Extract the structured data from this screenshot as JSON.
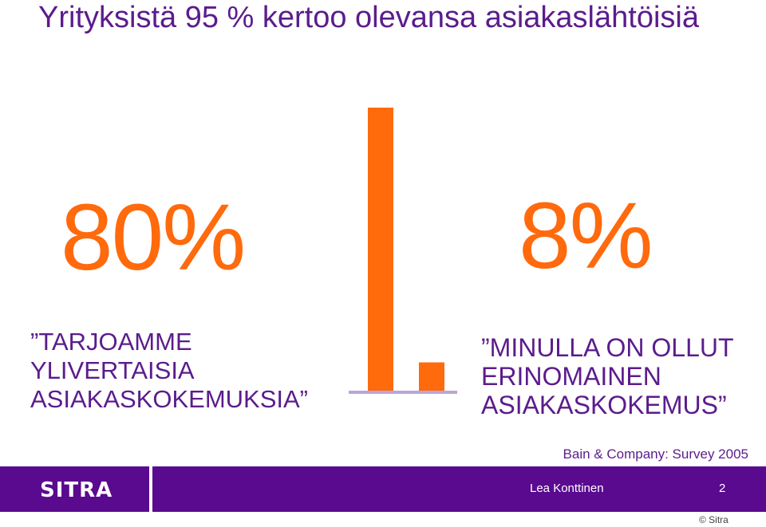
{
  "slide": {
    "title": "Yrityksistä 95 % kertoo olevansa asiakaslähtöisiä",
    "left_value_label": "80%",
    "left_quote_lines": [
      "”TARJOAMME",
      "YLIVERTAISIA",
      "ASIAKASKOKEMUKSIA”"
    ],
    "right_value_label": "8%",
    "right_quote_lines": [
      "”MINULLA ON OLLUT",
      "ERINOMAINEN",
      "ASIAKASKOKEMUS”"
    ],
    "source": "Bain & Company: Survey 2005"
  },
  "footer": {
    "logo_text": "SITRA",
    "author": "Lea Konttinen",
    "page_number": "2",
    "copyright": "© Sitra"
  },
  "colors": {
    "accent": "#ff6a0d",
    "brand_purple": "#5a0a8f",
    "axis": "#b9a6d6"
  },
  "chart_data": {
    "type": "bar",
    "categories": [
      "TARJOAMME YLIVERTAISIA ASIAKASKOKEMUKSIA",
      "MINULLA ON OLLUT ERINOMAINEN ASIAKASKOKEMUS"
    ],
    "values": [
      80,
      8
    ],
    "title": "",
    "xlabel": "",
    "ylabel": "",
    "ylim": [
      0,
      80
    ],
    "grid": false,
    "legend": "none"
  }
}
